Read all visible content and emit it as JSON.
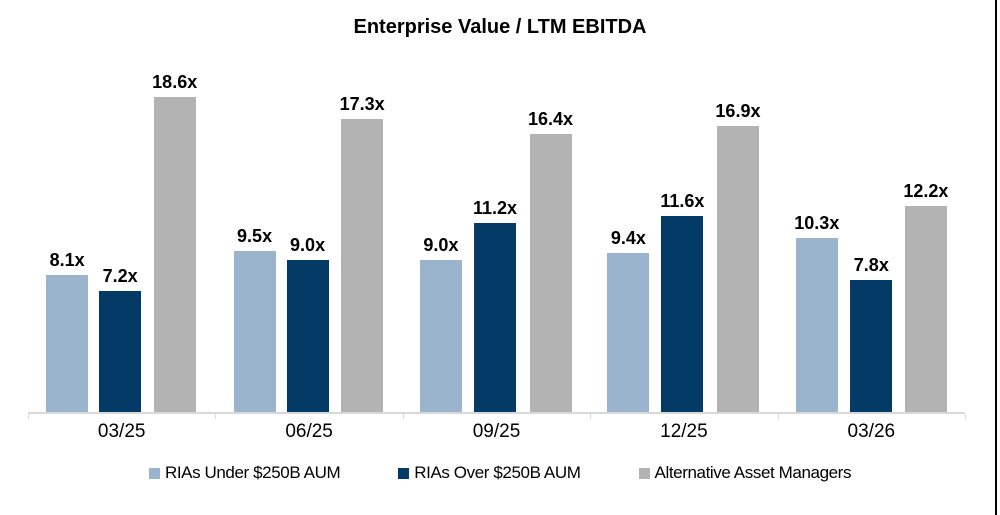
{
  "title": "Enterprise Value / LTM EBITDA",
  "chart_data": {
    "type": "bar",
    "title": "Enterprise Value / LTM EBITDA",
    "categories": [
      "03/25",
      "06/25",
      "09/25",
      "12/25",
      "03/26"
    ],
    "series": [
      {
        "name": "RIAs Under $250B AUM",
        "color": "#9bb4ce",
        "values": [
          8.1,
          9.5,
          9.0,
          9.4,
          10.3
        ]
      },
      {
        "name": "RIAs Over $250B AUM",
        "color": "#043a66",
        "values": [
          7.2,
          9.0,
          11.2,
          11.6,
          7.8
        ]
      },
      {
        "name": "Alternative Asset Managers",
        "color": "#b3b3b3",
        "values": [
          18.6,
          17.3,
          16.4,
          16.9,
          12.2
        ]
      }
    ],
    "data_labels": [
      [
        "8.1x",
        "9.5x",
        "9.0x",
        "9.4x",
        "10.3x"
      ],
      [
        "7.2x",
        "9.0x",
        "11.2x",
        "11.6x",
        "7.8x"
      ],
      [
        "18.6x",
        "17.3x",
        "16.4x",
        "16.9x",
        "12.2x"
      ]
    ],
    "label_suffix": "x",
    "xlabel": "",
    "ylabel": "",
    "ylim": [
      0,
      19.4
    ],
    "grid": false,
    "legend_position": "bottom",
    "axis_color": "#d9d9d9"
  },
  "decor": {
    "right_border_color": "#000000"
  }
}
